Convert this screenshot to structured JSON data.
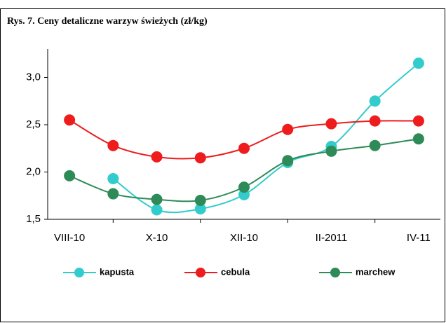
{
  "chart_data": {
    "type": "line",
    "title": "Rys. 7. Ceny detaliczne warzyw świeżych (zł/kg)",
    "categories": [
      "VIII-10",
      null,
      "X-10",
      null,
      "XII-10",
      null,
      "II-2011",
      null,
      "IV-11"
    ],
    "series": [
      {
        "name": "kapusta",
        "color": "#33cccc",
        "values": [
          null,
          1.93,
          1.6,
          1.61,
          1.76,
          2.1,
          2.27,
          2.75,
          3.15
        ]
      },
      {
        "name": "cebula",
        "color": "#ee1c1c",
        "values": [
          2.55,
          2.28,
          2.16,
          2.15,
          2.25,
          2.45,
          2.51,
          2.54,
          2.54
        ]
      },
      {
        "name": "marchew",
        "color": "#2e8b57",
        "values": [
          1.96,
          1.77,
          1.71,
          1.7,
          1.84,
          2.12,
          2.22,
          2.28,
          2.35
        ]
      }
    ],
    "ylim": [
      1.5,
      3.3
    ],
    "yticks": [
      {
        "value": 1.5,
        "label": "1,5"
      },
      {
        "value": 2.0,
        "label": "2,0"
      },
      {
        "value": 2.5,
        "label": "2,5"
      },
      {
        "value": 3.0,
        "label": "3,0"
      }
    ],
    "legend": "bottom"
  }
}
